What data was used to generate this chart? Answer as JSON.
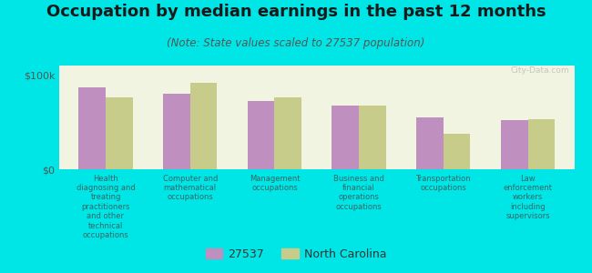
{
  "title": "Occupation by median earnings in the past 12 months",
  "subtitle": "(Note: State values scaled to 27537 population)",
  "background_color": "#00e5e5",
  "plot_bg_color": "#f0f4e0",
  "bar_width": 0.32,
  "categories": [
    "Health\ndiagnosing and\ntreating\npractitioners\nand other\ntechnical\noccupations",
    "Computer and\nmathematical\noccupations",
    "Management\noccupations",
    "Business and\nfinancial\noperations\noccupations",
    "Transportation\noccupations",
    "Law\nenforcement\nworkers\nincluding\nsupervisors"
  ],
  "values_27537": [
    87000,
    80000,
    72000,
    68000,
    55000,
    52000
  ],
  "values_nc": [
    76000,
    92000,
    76000,
    68000,
    38000,
    53000
  ],
  "color_27537": "#bf8fbf",
  "color_nc": "#c8cc8a",
  "ylim": [
    0,
    110000
  ],
  "yticks": [
    0,
    100000
  ],
  "ytick_labels": [
    "$0",
    "$100k"
  ],
  "legend_label_1": "27537",
  "legend_label_2": "North Carolina",
  "title_fontsize": 13,
  "subtitle_fontsize": 8.5,
  "tick_fontsize": 8,
  "xtick_fontsize": 6.0,
  "watermark": "City-Data.com"
}
